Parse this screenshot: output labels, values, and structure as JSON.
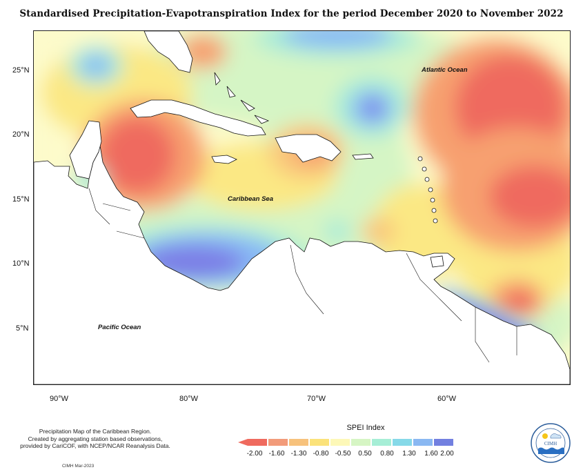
{
  "title": "Standardised Precipitation-Evapotranspiration Index for the period December 2020 to November 2022",
  "map": {
    "ocean_labels": {
      "atlantic": "Atlantic Ocean",
      "caribbean": "Caribbean Sea",
      "pacific": "Pacific Ocean"
    },
    "lat_labels": [
      "25°N",
      "20°N",
      "15°N",
      "10°N",
      "5°N"
    ],
    "lon_labels": [
      "90°W",
      "80°W",
      "70°W",
      "60°W"
    ],
    "colors": {
      "very_dry": "#ef6a5e",
      "dry": "#f7a070",
      "mod_dry": "#f9c77c",
      "slight_dry": "#fbe884",
      "normal": "#fdfbcb",
      "slight_wet": "#d5f5c5",
      "mod_wet": "#a9ecd8",
      "wet": "#7fd6ec",
      "very_wet": "#88b8f5",
      "ext_wet": "#7b7fe6",
      "land": "#ffffff"
    }
  },
  "legend": {
    "title": "SPEI Index",
    "ticks": [
      "-2.00",
      "-1.60",
      "-1.30",
      "-0.80",
      "-0.50",
      "0.50",
      "0.80",
      "1.30",
      "1.60",
      "2.00"
    ],
    "colors": [
      "#ef6a5e",
      "#f29b7a",
      "#f7c27c",
      "#fbe27a",
      "#fdf8b8",
      "#d6f5c4",
      "#a6eed6",
      "#86d9e8",
      "#8ab8f2",
      "#7280e0"
    ]
  },
  "footnote": {
    "line1": "Precipitation Map of the Caribbean Region.",
    "line2": "Created by aggregating station based observations,",
    "line3": "provided by CariCOF, with NCEP/NCAR Reanalysis Data."
  },
  "credit": "CIMH Mar-2023",
  "logo": {
    "text": "CIMH"
  }
}
